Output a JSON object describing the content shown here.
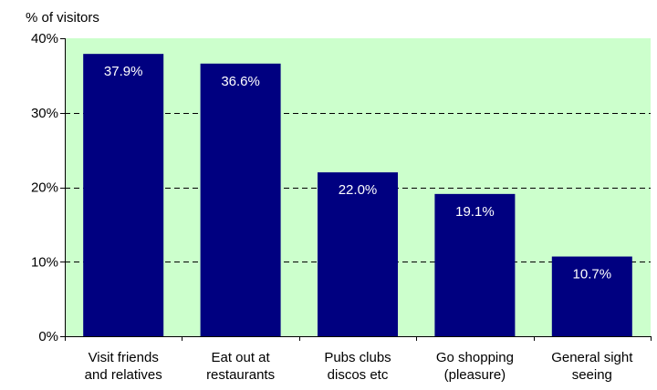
{
  "chart_data": {
    "type": "bar",
    "ylabel": "% of visitors",
    "categories": [
      [
        "Visit friends",
        "and relatives"
      ],
      [
        "Eat out at",
        "restaurants"
      ],
      [
        "Pubs clubs",
        "discos etc"
      ],
      [
        "Go shopping",
        "(pleasure)"
      ],
      [
        "General sight",
        "seeing"
      ]
    ],
    "values": [
      37.9,
      36.6,
      22.0,
      19.1,
      10.7
    ],
    "value_labels": [
      "37.9%",
      "36.6%",
      "22.0%",
      "19.1%",
      "10.7%"
    ],
    "ylim": [
      0,
      40
    ],
    "yticks": [
      0,
      10,
      20,
      30,
      40
    ],
    "ytick_labels": [
      "0%",
      "10%",
      "20%",
      "30%",
      "40%"
    ],
    "grid": "dashed horizontal",
    "colors": {
      "bar": "#000080",
      "plot_background": "#ccffcc",
      "value_label": "#ffffff",
      "axis": "#000000",
      "text": "#000000"
    }
  }
}
